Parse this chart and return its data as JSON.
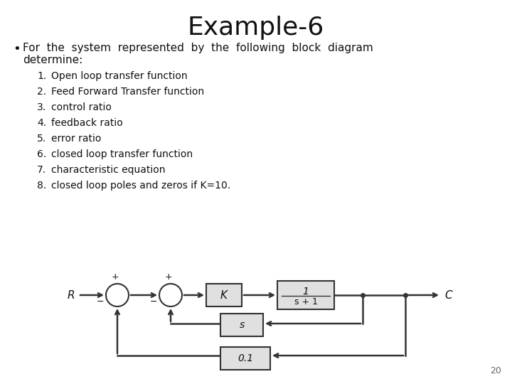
{
  "title": "Example-6",
  "bg_color": "#ffffff",
  "title_fontsize": 26,
  "body_fontsize": 11,
  "item_fontsize": 10,
  "bullet_text": "For the system represented by the following block diagram determine:",
  "items": [
    "Open loop transfer function",
    "Feed Forward Transfer function",
    "control ratio",
    "feedback ratio",
    "error ratio",
    "closed loop transfer function",
    "characteristic equation",
    "closed loop poles and zeros if K=10."
  ],
  "page_number": "20",
  "text_color": "#111111",
  "line_color": "#333333",
  "block_fill": "#e0e0e0",
  "block_edge": "#333333"
}
